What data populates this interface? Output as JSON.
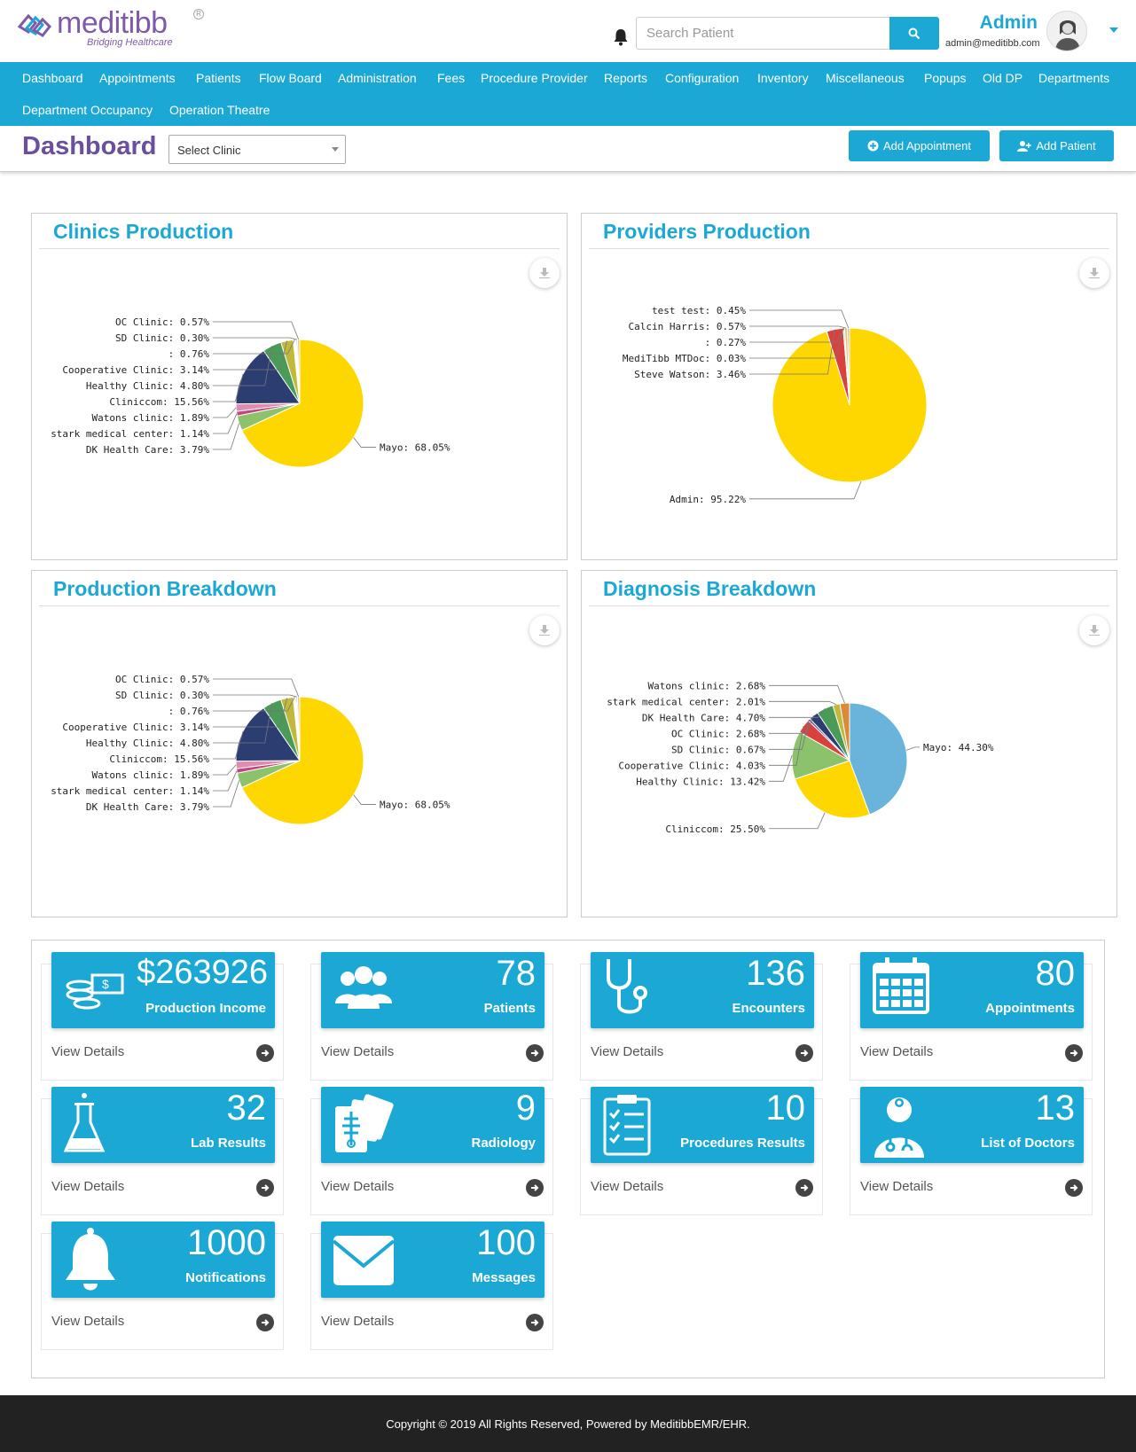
{
  "brand": {
    "name": "meditibb",
    "tagline": "Bridging Healthcare"
  },
  "header": {
    "search_placeholder": "Search Patient",
    "user_name": "Admin",
    "user_email": "admin@meditibb.com"
  },
  "nav": {
    "items": [
      "Dashboard",
      "Appointments",
      "Patients",
      "Flow Board",
      "Administration",
      "Fees",
      "Procedure Provider",
      "Reports",
      "Configuration",
      "Inventory",
      "Miscellaneous",
      "Popups",
      "Old DP",
      "Departments",
      "Department Occupancy",
      "Operation Theatre"
    ]
  },
  "subbar": {
    "title": "Dashboard",
    "clinic_select": "Select Clinic",
    "add_appointment": "Add Appointment",
    "add_patient": "Add Patient"
  },
  "colors": {
    "accent": "#1ba8d5",
    "brand_purple": "#6b4e9e",
    "footer_bg": "#222222"
  },
  "chart_data": [
    {
      "type": "pie",
      "title": "Clinics Production",
      "labels": [
        "Mayo",
        "DK Health Care",
        "stark medical center",
        "Watons clinic",
        "Cliniccom",
        "Healthy Clinic",
        "Cooperative Clinic",
        "",
        "SD Clinic",
        "OC Clinic"
      ],
      "values": [
        68.05,
        3.79,
        1.14,
        1.89,
        15.56,
        4.8,
        3.14,
        0.76,
        0.3,
        0.57
      ],
      "display": [
        "Mayo: 68.05%",
        "DK Health Care: 3.79%",
        "stark medical center: 1.14%",
        "Watons clinic: 1.89%",
        "Cliniccom: 15.56%",
        "Healthy Clinic: 4.80%",
        "Cooperative Clinic: 3.14%",
        ": 0.76%",
        "SD Clinic: 0.30%",
        "OC Clinic: 0.57%"
      ],
      "colors": [
        "#ffd700",
        "#8bc26b",
        "#c3477a",
        "#e08bb0",
        "#2c3e71",
        "#4a9a58",
        "#c2b83b",
        "#ffffff",
        "#7a9ad0",
        "#f0c87a"
      ]
    },
    {
      "type": "pie",
      "title": "Providers Production",
      "labels": [
        "Admin",
        "Steve Watson",
        "MediTibb MTDoc",
        "",
        "Calcin Harris",
        "test test"
      ],
      "values": [
        95.22,
        3.46,
        0.03,
        0.27,
        0.57,
        0.45
      ],
      "display": [
        "Admin: 95.22%",
        "Steve Watson: 3.46%",
        "MediTibb MTDoc: 0.03%",
        ": 0.27%",
        "Calcin Harris: 0.57%",
        "test test: 0.45%"
      ],
      "colors": [
        "#ffd700",
        "#d9413e",
        "#333333",
        "#999999",
        "#e8c35a",
        "#bbbbbb"
      ]
    },
    {
      "type": "pie",
      "title": "Production Breakdown",
      "labels": [
        "Mayo",
        "DK Health Care",
        "stark medical center",
        "Watons clinic",
        "Cliniccom",
        "Healthy Clinic",
        "Cooperative Clinic",
        "",
        "SD Clinic",
        "OC Clinic"
      ],
      "values": [
        68.05,
        3.79,
        1.14,
        1.89,
        15.56,
        4.8,
        3.14,
        0.76,
        0.3,
        0.57
      ],
      "display": [
        "Mayo: 68.05%",
        "DK Health Care: 3.79%",
        "stark medical center: 1.14%",
        "Watons clinic: 1.89%",
        "Cliniccom: 15.56%",
        "Healthy Clinic: 4.80%",
        "Cooperative Clinic: 3.14%",
        ": 0.76%",
        "SD Clinic: 0.30%",
        "OC Clinic: 0.57%"
      ],
      "colors": [
        "#ffd700",
        "#8bc26b",
        "#c3477a",
        "#e08bb0",
        "#2c3e71",
        "#4a9a58",
        "#c2b83b",
        "#ffffff",
        "#7a9ad0",
        "#f0c87a"
      ]
    },
    {
      "type": "pie",
      "title": "Diagnosis Breakdown",
      "labels": [
        "Mayo",
        "Cliniccom",
        "Healthy Clinic",
        "Cooperative Clinic",
        "SD Clinic",
        "OC Clinic",
        "DK Health Care",
        "stark medical center",
        "Watons clinic"
      ],
      "values": [
        44.3,
        25.5,
        13.42,
        4.03,
        0.67,
        2.68,
        4.7,
        2.01,
        2.68
      ],
      "display": [
        "Mayo: 44.30%",
        "Cliniccom: 25.50%",
        "Healthy Clinic: 13.42%",
        "Cooperative Clinic: 4.03%",
        "SD Clinic: 0.67%",
        "OC Clinic: 2.68%",
        "DK Health Care: 4.70%",
        "stark medical center: 2.01%",
        "Watons clinic: 2.68%"
      ],
      "colors": [
        "#6ab4dc",
        "#ffd700",
        "#8bc26b",
        "#d9413e",
        "#6b4e9e",
        "#2c3e71",
        "#4a9a58",
        "#c2b83b",
        "#d98a3a"
      ]
    }
  ],
  "stats": [
    {
      "value": "$263926",
      "label": "Production Income",
      "icon": "money-icon",
      "link": "View Details"
    },
    {
      "value": "78",
      "label": "Patients",
      "icon": "users-icon",
      "link": "View Details"
    },
    {
      "value": "136",
      "label": "Encounters",
      "icon": "stethoscope-icon",
      "link": "View Details"
    },
    {
      "value": "80",
      "label": "Appointments",
      "icon": "calendar-icon",
      "link": "View Details"
    },
    {
      "value": "32",
      "label": "Lab Results",
      "icon": "flask-icon",
      "link": "View Details"
    },
    {
      "value": "9",
      "label": "Radiology",
      "icon": "xray-icon",
      "link": "View Details"
    },
    {
      "value": "10",
      "label": "Procedures Results",
      "icon": "clipboard-icon",
      "link": "View Details"
    },
    {
      "value": "13",
      "label": "List of Doctors",
      "icon": "doctor-icon",
      "link": "View Details"
    },
    {
      "value": "1000",
      "label": "Notifications",
      "icon": "bell-icon",
      "link": "View Details"
    },
    {
      "value": "100",
      "label": "Messages",
      "icon": "envelope-icon",
      "link": "View Details"
    }
  ],
  "footer": {
    "text": "Copyright © 2019 All Rights Reserved, Powered by MeditibbEMR/EHR."
  }
}
